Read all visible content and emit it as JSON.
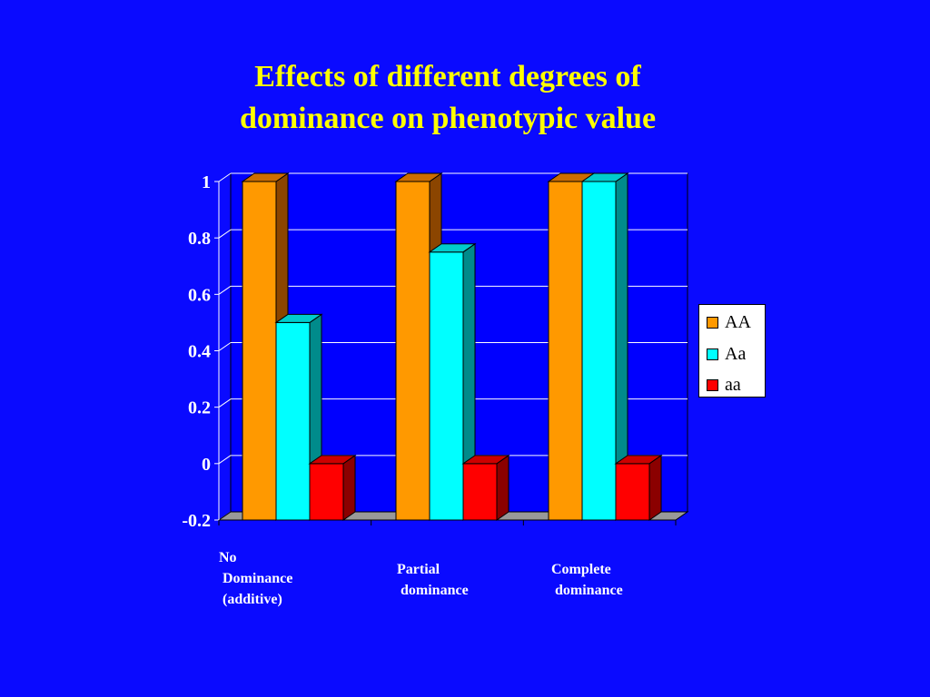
{
  "slide": {
    "title_line1": "Effects of different degrees of",
    "title_line2": "dominance on phenotypic value"
  },
  "chart_data": {
    "type": "bar",
    "style": "3d-clustered",
    "categories": [
      "No\n Dominance\n (additive)",
      "Partial\n dominance",
      "Complete\n dominance"
    ],
    "series": [
      {
        "name": "AA",
        "color": "#ff9900",
        "side": "#8b4500",
        "top": "#cc6d00",
        "values": [
          1,
          1,
          1
        ]
      },
      {
        "name": "Aa",
        "color": "#00ffff",
        "side": "#008b8b",
        "top": "#00cccc",
        "values": [
          0.5,
          0.75,
          1
        ]
      },
      {
        "name": "aa",
        "color": "#ff0000",
        "side": "#8b0000",
        "top": "#cc0000",
        "values": [
          0,
          0,
          0
        ]
      }
    ],
    "ylim": [
      -0.2,
      1
    ],
    "yticks": [
      "1",
      "0.8",
      "0.6",
      "0.4",
      "0.2",
      "0",
      "-0.2"
    ],
    "ytick_values": [
      1,
      0.8,
      0.6,
      0.4,
      0.2,
      0,
      -0.2
    ],
    "grid": true,
    "legend_position": "right",
    "plot_background": "#0000ff",
    "grid_color": "#ffffff",
    "floor_color": "#999999"
  }
}
